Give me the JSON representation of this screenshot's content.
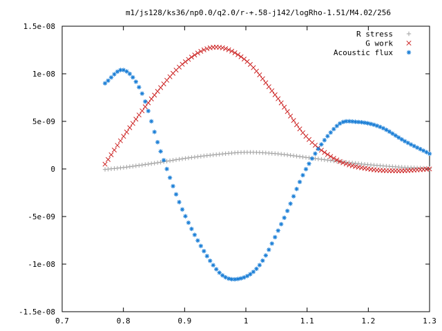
{
  "chart_data": {
    "type": "scatter",
    "title": "m1/js128/ks36/np0.0/q2.0/r-+.58-j142/logRho-1.51/M4.02/256",
    "xlabel": "",
    "ylabel": "",
    "xlim": [
      0.7,
      1.3
    ],
    "ylim": [
      -1.5e-08,
      1.5e-08
    ],
    "x_ticks": [
      "0.7",
      "0.8",
      "0.9",
      "1",
      "1.1",
      "1.2",
      "1.3"
    ],
    "y_ticks": [
      "-1.5e-08",
      "-1e-08",
      "-5e-09",
      "0",
      "5e-09",
      "1e-08",
      "1.5e-08"
    ],
    "legend_position": "top-right",
    "grid": false,
    "series": [
      {
        "name": "R stress",
        "marker": "plus",
        "color": "#a0a0a0",
        "x": [
          0.77,
          0.8,
          0.85,
          0.9,
          0.95,
          1.0,
          1.05,
          1.1,
          1.15,
          1.2,
          1.25,
          1.3
        ],
        "y": [
          -5e-11,
          1.5e-10,
          6e-10,
          1.1e-09,
          1.5e-09,
          1.75e-09,
          1.6e-09,
          1.2e-09,
          8e-10,
          4.5e-10,
          2e-10,
          5e-11
        ]
      },
      {
        "name": "G work",
        "marker": "cross",
        "color": "#cc2222",
        "x": [
          0.77,
          0.8,
          0.85,
          0.9,
          0.95,
          1.0,
          1.05,
          1.1,
          1.15,
          1.2,
          1.25,
          1.3
        ],
        "y": [
          5e-10,
          3.4e-09,
          7.7e-09,
          1.12e-08,
          1.28e-08,
          1.14e-08,
          7.6e-09,
          3.3e-09,
          9e-10,
          0.0,
          -2e-10,
          0.0
        ]
      },
      {
        "name": "Acoustic flux",
        "marker": "star",
        "color": "#1a7ed6",
        "x": [
          0.77,
          0.8,
          0.83,
          0.86,
          0.9,
          0.95,
          0.98,
          1.02,
          1.06,
          1.1,
          1.15,
          1.18,
          1.22,
          1.26,
          1.3
        ],
        "y": [
          9e-09,
          1.04e-08,
          8e-09,
          2e-09,
          -4.8e-09,
          -1.04e-08,
          -1.16e-08,
          -1.03e-08,
          -5.5e-09,
          2e-10,
          4.6e-09,
          4.95e-09,
          4.4e-09,
          2.9e-09,
          1.6e-09
        ]
      }
    ]
  }
}
